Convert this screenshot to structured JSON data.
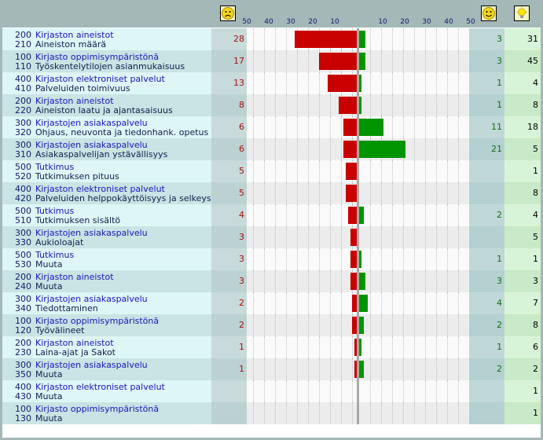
{
  "colors": {
    "negative_bar": "#c80000",
    "positive_bar": "#009400",
    "header_bg": "#a4b8b8"
  },
  "header": {
    "sad_icon": "sad-face-icon",
    "happy_icon": "happy-face-icon",
    "idea_icon": "lightbulb-icon",
    "neg_scale": [
      "50",
      "40",
      "30",
      "20",
      "10"
    ],
    "pos_scale": [
      "10",
      "20",
      "30",
      "40",
      "50"
    ]
  },
  "rows": [
    {
      "cat_code": "200",
      "cat": "Kirjaston aineistot",
      "sub_code": "210",
      "sub": "Aineiston määrä",
      "neg": "28",
      "pos": "3",
      "idea": "31",
      "neg_value": 28,
      "pos_value": 3
    },
    {
      "cat_code": "100",
      "cat": "Kirjasto oppimisympäristönä",
      "sub_code": "110",
      "sub": "Työskentelytilojen asianmukaisuus",
      "neg": "17",
      "pos": "3",
      "idea": "45",
      "neg_value": 17,
      "pos_value": 3
    },
    {
      "cat_code": "400",
      "cat": "Kirjaston elektroniset palvelut",
      "sub_code": "410",
      "sub": "Palveluiden toimivuus",
      "neg": "13",
      "pos": "1",
      "idea": "4",
      "neg_value": 13,
      "pos_value": 1
    },
    {
      "cat_code": "200",
      "cat": "Kirjaston aineistot",
      "sub_code": "220",
      "sub": "Aineiston laatu ja ajantasaisuus",
      "neg": "8",
      "pos": "1",
      "idea": "8",
      "neg_value": 8,
      "pos_value": 1
    },
    {
      "cat_code": "300",
      "cat": "Kirjastojen asiakaspalvelu",
      "sub_code": "320",
      "sub": "Ohjaus, neuvonta ja tiedonhank. opetus",
      "neg": "6",
      "pos": "11",
      "idea": "18",
      "neg_value": 6,
      "pos_value": 11
    },
    {
      "cat_code": "300",
      "cat": "Kirjastojen asiakaspalvelu",
      "sub_code": "310",
      "sub": "Asiakaspalvelijan ystävällisyys",
      "neg": "6",
      "pos": "21",
      "idea": "5",
      "neg_value": 6,
      "pos_value": 21
    },
    {
      "cat_code": "500",
      "cat": "Tutkimus",
      "sub_code": "520",
      "sub": "Tutkimuksen pituus",
      "neg": "5",
      "pos": "",
      "idea": "1",
      "neg_value": 5,
      "pos_value": 0
    },
    {
      "cat_code": "400",
      "cat": "Kirjaston elektroniset palvelut",
      "sub_code": "420",
      "sub": "Palveluiden helppokäyttöisyys ja selkeys",
      "neg": "5",
      "pos": "",
      "idea": "8",
      "neg_value": 5,
      "pos_value": 0
    },
    {
      "cat_code": "500",
      "cat": "Tutkimus",
      "sub_code": "510",
      "sub": "Tutkimuksen sisältö",
      "neg": "4",
      "pos": "2",
      "idea": "4",
      "neg_value": 4,
      "pos_value": 2
    },
    {
      "cat_code": "300",
      "cat": "Kirjastojen asiakaspalvelu",
      "sub_code": "330",
      "sub": "Aukioloajat",
      "neg": "3",
      "pos": "",
      "idea": "5",
      "neg_value": 3,
      "pos_value": 0
    },
    {
      "cat_code": "500",
      "cat": "Tutkimus",
      "sub_code": "530",
      "sub": "Muuta",
      "neg": "3",
      "pos": "1",
      "idea": "1",
      "neg_value": 3,
      "pos_value": 1
    },
    {
      "cat_code": "200",
      "cat": "Kirjaston aineistot",
      "sub_code": "240",
      "sub": "Muuta",
      "neg": "3",
      "pos": "3",
      "idea": "3",
      "neg_value": 3,
      "pos_value": 3
    },
    {
      "cat_code": "300",
      "cat": "Kirjastojen asiakaspalvelu",
      "sub_code": "340",
      "sub": "Tiedottaminen",
      "neg": "2",
      "pos": "4",
      "idea": "7",
      "neg_value": 2,
      "pos_value": 4
    },
    {
      "cat_code": "100",
      "cat": "Kirjasto oppimisympäristönä",
      "sub_code": "120",
      "sub": "Työvälineet",
      "neg": "2",
      "pos": "2",
      "idea": "8",
      "neg_value": 2,
      "pos_value": 2
    },
    {
      "cat_code": "200",
      "cat": "Kirjaston aineistot",
      "sub_code": "230",
      "sub": "Laina-ajat ja Sakot",
      "neg": "1",
      "pos": "1",
      "idea": "6",
      "neg_value": 1,
      "pos_value": 1
    },
    {
      "cat_code": "300",
      "cat": "Kirjastojen asiakaspalvelu",
      "sub_code": "350",
      "sub": "Muuta",
      "neg": "1",
      "pos": "2",
      "idea": "2",
      "neg_value": 1,
      "pos_value": 2
    },
    {
      "cat_code": "400",
      "cat": "Kirjaston elektroniset palvelut",
      "sub_code": "430",
      "sub": "Muuta",
      "neg": "",
      "pos": "",
      "idea": "1",
      "neg_value": 0,
      "pos_value": 0
    },
    {
      "cat_code": "100",
      "cat": "Kirjasto oppimisympäristönä",
      "sub_code": "130",
      "sub": "Muuta",
      "neg": "",
      "pos": "",
      "idea": "1",
      "neg_value": 0,
      "pos_value": 0
    }
  ]
}
